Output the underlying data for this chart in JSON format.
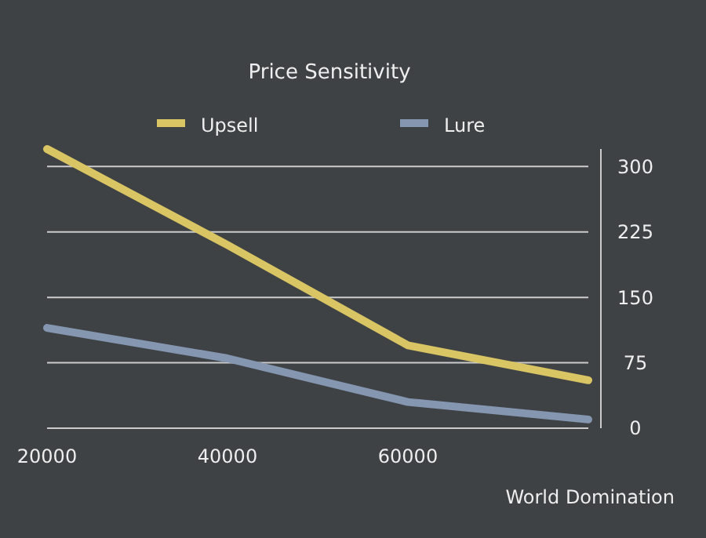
{
  "chart_data": {
    "type": "line",
    "title": "Price Sensitivity",
    "xlabel": "World Domination",
    "categories": [
      "20000",
      "40000",
      "60000",
      null
    ],
    "series": [
      {
        "name": "Upsell",
        "color": "#d9c563",
        "values": [
          320,
          210,
          95,
          55
        ]
      },
      {
        "name": "Lure",
        "color": "#8596b0",
        "values": [
          115,
          80,
          30,
          10
        ]
      }
    ],
    "ylim": [
      0,
      320
    ],
    "yticks": [
      0,
      75,
      150,
      225,
      300
    ],
    "grid": "y",
    "legend": "top"
  }
}
